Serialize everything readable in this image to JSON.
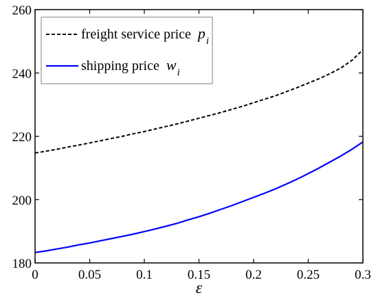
{
  "chart_data": {
    "type": "line",
    "xlabel": "ε",
    "ylabel": "",
    "xlim": [
      0,
      0.3
    ],
    "ylim": [
      180,
      260
    ],
    "xticks": [
      0,
      0.05,
      0.1,
      0.15,
      0.2,
      0.25,
      0.3
    ],
    "xtick_labels": [
      "0",
      "0.05",
      "0.1",
      "0.15",
      "0.2",
      "0.25",
      "0.3"
    ],
    "yticks": [
      180,
      200,
      220,
      240,
      260
    ],
    "ytick_labels": [
      "180",
      "200",
      "220",
      "240",
      "260"
    ],
    "grid": false,
    "legend_position": "top-left",
    "x": [
      0,
      0.01,
      0.02,
      0.03,
      0.04,
      0.05,
      0.06,
      0.07,
      0.08,
      0.09,
      0.1,
      0.11,
      0.12,
      0.13,
      0.14,
      0.15,
      0.16,
      0.17,
      0.18,
      0.19,
      0.2,
      0.21,
      0.22,
      0.23,
      0.24,
      0.25,
      0.26,
      0.27,
      0.28,
      0.29,
      0.3
    ],
    "series": [
      {
        "name": "freight service price",
        "symbol": "p",
        "subscript": "i",
        "style": "dashed",
        "color": "#000000",
        "values": [
          214.7,
          215.3,
          215.9,
          216.6,
          217.2,
          217.9,
          218.6,
          219.3,
          220.0,
          220.8,
          221.5,
          222.3,
          223.1,
          223.9,
          224.8,
          225.7,
          226.6,
          227.5,
          228.5,
          229.5,
          230.6,
          231.7,
          232.8,
          234.1,
          235.4,
          236.8,
          238.2,
          239.8,
          241.6,
          244.0,
          247.3
        ]
      },
      {
        "name": "shipping price",
        "symbol": "w",
        "subscript": "i",
        "style": "solid",
        "color": "#0000ff",
        "values": [
          183.3,
          183.8,
          184.4,
          185.0,
          185.7,
          186.3,
          187.0,
          187.7,
          188.4,
          189.1,
          189.9,
          190.7,
          191.6,
          192.5,
          193.6,
          194.6,
          195.7,
          196.9,
          198.1,
          199.4,
          200.7,
          202.0,
          203.4,
          204.9,
          206.5,
          208.2,
          210.0,
          211.9,
          213.8,
          215.9,
          218.2
        ]
      }
    ]
  }
}
